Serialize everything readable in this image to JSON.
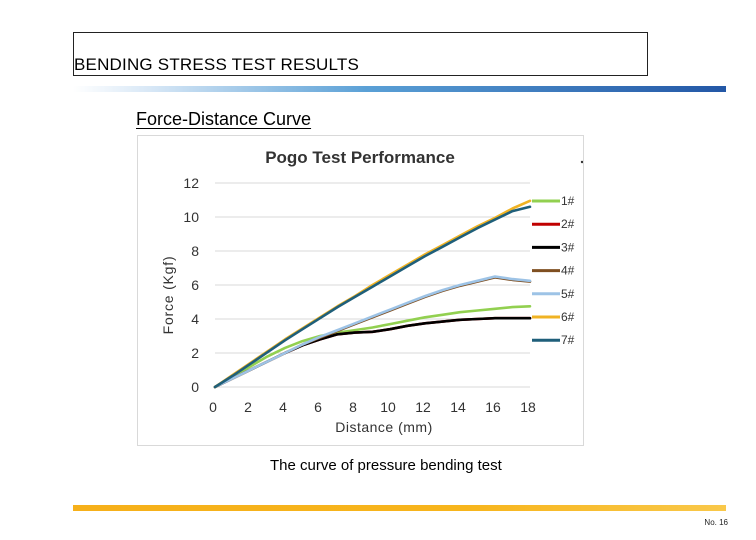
{
  "slide": {
    "title": "BENDING STRESS TEST RESULTS",
    "section_heading": "Force-Distance Curve",
    "caption": "The curve of pressure bending test",
    "page_number": "No. 16",
    "colors": {
      "top_rule": "#2357a6",
      "bottom_rule": "#f6b01a"
    }
  },
  "chart_data": {
    "type": "line",
    "title": "Pogo Test Performance",
    "xlabel": "Distance (mm)",
    "ylabel": "Force (Kgf)",
    "xlim": [
      0,
      18
    ],
    "ylim": [
      0,
      12
    ],
    "xticks": [
      0,
      2,
      4,
      6,
      8,
      10,
      12,
      14,
      16,
      18
    ],
    "yticks": [
      0,
      2,
      4,
      6,
      8,
      10,
      12
    ],
    "grid": "horizontal",
    "legend_position": "right",
    "series": [
      {
        "name": "1#",
        "color": "#92d050",
        "x": [
          0,
          1,
          2,
          3,
          4,
          5,
          6,
          7,
          8,
          9,
          10,
          11,
          12,
          13,
          14,
          15,
          16,
          17,
          18
        ],
        "y": [
          0,
          0.6,
          1.2,
          1.8,
          2.3,
          2.7,
          3.0,
          3.2,
          3.35,
          3.5,
          3.7,
          3.9,
          4.1,
          4.25,
          4.4,
          4.5,
          4.6,
          4.7,
          4.75
        ]
      },
      {
        "name": "2#",
        "color": "#c00000",
        "x": [
          0,
          1,
          2,
          3,
          4,
          5,
          6,
          7,
          8,
          9,
          10,
          11,
          12,
          13,
          14,
          15,
          16,
          17,
          18
        ],
        "y": [
          0,
          0.5,
          1.0,
          1.5,
          2.0,
          2.45,
          2.8,
          3.1,
          3.2,
          3.25,
          3.4,
          3.6,
          3.75,
          3.85,
          3.95,
          4.0,
          4.05,
          4.05,
          4.05
        ]
      },
      {
        "name": "3#",
        "color": "#000000",
        "x": [
          0,
          1,
          2,
          3,
          4,
          5,
          6,
          7,
          8,
          9,
          10,
          11,
          12,
          13,
          14,
          15,
          16,
          17,
          18
        ],
        "y": [
          0,
          0.5,
          1.0,
          1.5,
          2.0,
          2.45,
          2.8,
          3.1,
          3.2,
          3.25,
          3.4,
          3.6,
          3.75,
          3.85,
          3.95,
          4.0,
          4.05,
          4.05,
          4.05
        ]
      },
      {
        "name": "4#",
        "color": "#7f4f21",
        "x": [
          0,
          1,
          2,
          3,
          4,
          5,
          6,
          7,
          8,
          9,
          10,
          11,
          12,
          13,
          14,
          15,
          16,
          17,
          18
        ],
        "y": [
          0,
          0.5,
          1.0,
          1.5,
          2.0,
          2.5,
          2.9,
          3.3,
          3.7,
          4.1,
          4.5,
          4.9,
          5.3,
          5.65,
          5.95,
          6.2,
          6.45,
          6.3,
          6.2
        ]
      },
      {
        "name": "5#",
        "color": "#9dc3e6",
        "x": [
          0,
          1,
          2,
          3,
          4,
          5,
          6,
          7,
          8,
          9,
          10,
          11,
          12,
          13,
          14,
          15,
          16,
          17,
          18
        ],
        "y": [
          0,
          0.5,
          1.0,
          1.5,
          2.0,
          2.5,
          2.95,
          3.35,
          3.75,
          4.15,
          4.55,
          4.95,
          5.35,
          5.7,
          6.0,
          6.25,
          6.5,
          6.35,
          6.25
        ]
      },
      {
        "name": "6#",
        "color": "#f0b323",
        "x": [
          0,
          1,
          2,
          3,
          4,
          5,
          6,
          7,
          8,
          9,
          10,
          11,
          12,
          13,
          14,
          15,
          16,
          17,
          18
        ],
        "y": [
          0,
          0.7,
          1.4,
          2.1,
          2.8,
          3.45,
          4.1,
          4.75,
          5.35,
          6.0,
          6.6,
          7.2,
          7.8,
          8.35,
          8.9,
          9.45,
          9.95,
          10.5,
          10.95
        ]
      },
      {
        "name": "7#",
        "color": "#1f5f7a",
        "x": [
          0,
          1,
          2,
          3,
          4,
          5,
          6,
          7,
          8,
          9,
          10,
          11,
          12,
          13,
          14,
          15,
          16,
          17,
          18
        ],
        "y": [
          0,
          0.65,
          1.35,
          2.05,
          2.75,
          3.4,
          4.05,
          4.7,
          5.3,
          5.9,
          6.5,
          7.1,
          7.7,
          8.25,
          8.8,
          9.35,
          9.85,
          10.35,
          10.6
        ]
      }
    ]
  }
}
